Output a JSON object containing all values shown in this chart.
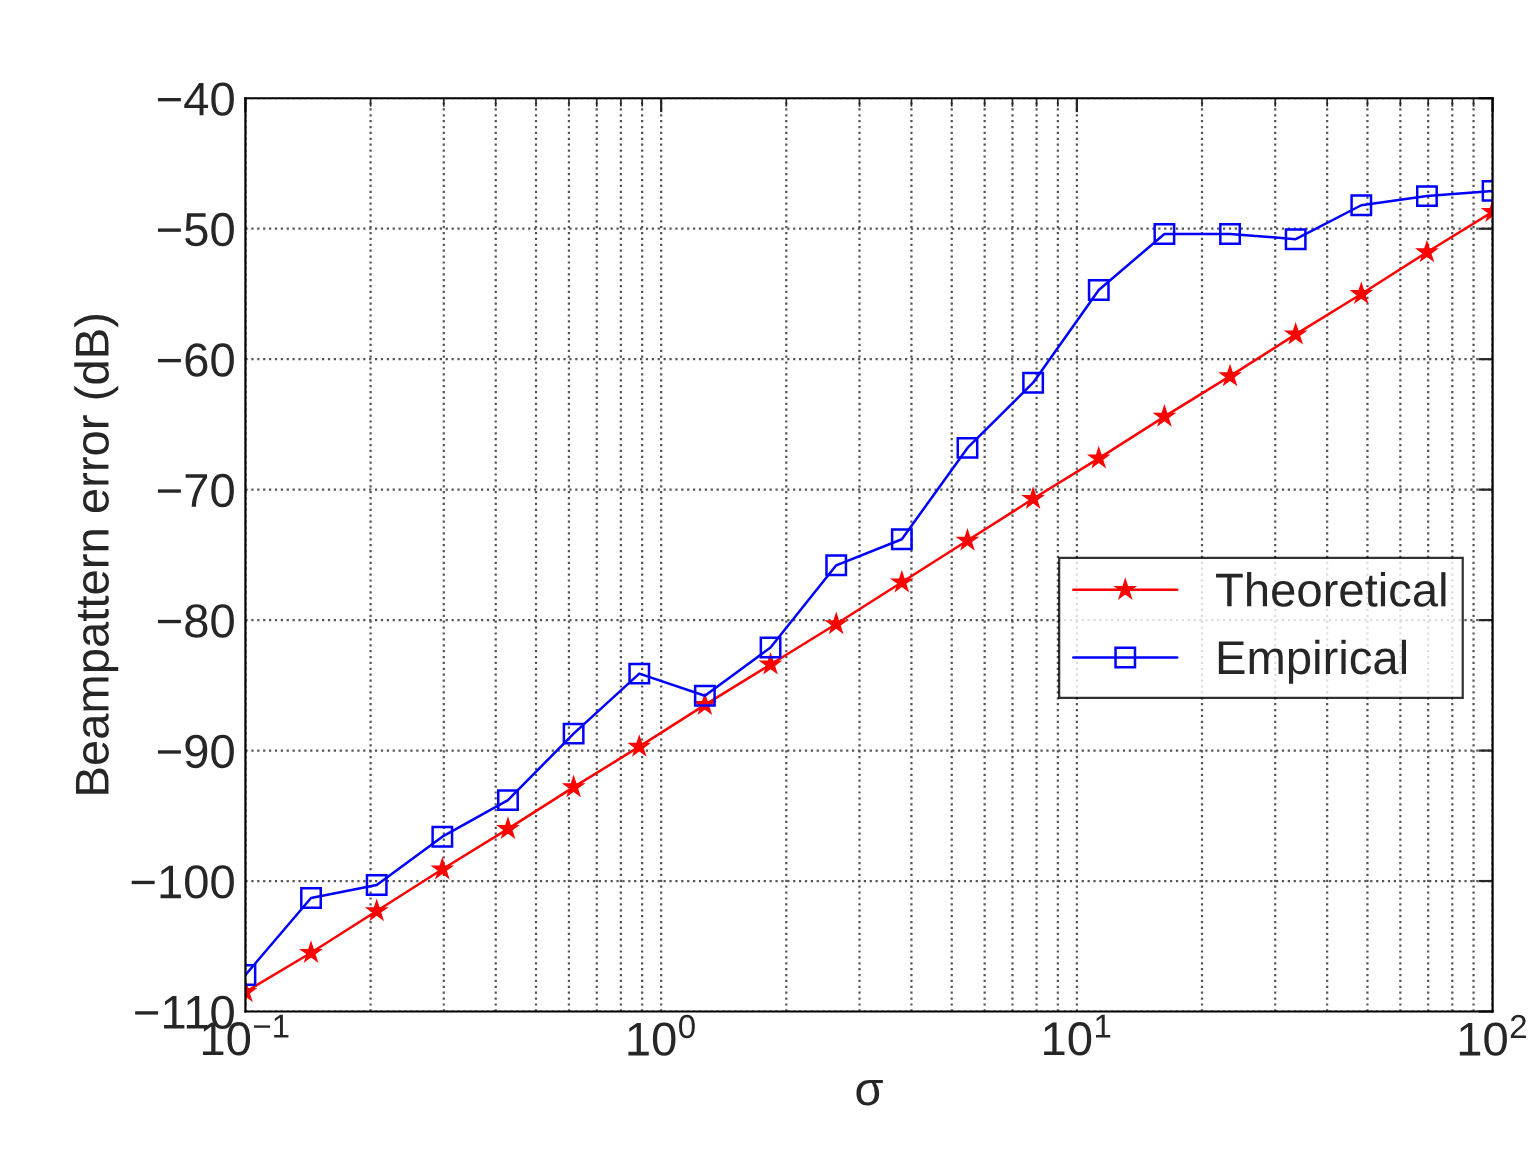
{
  "chart_data": {
    "type": "line",
    "xlabel": "σ",
    "ylabel": "Beampattern error (dB)",
    "x": [
      0.1,
      0.1438,
      0.2069,
      0.2976,
      0.4281,
      0.6158,
      0.8859,
      1.274,
      1.833,
      2.637,
      3.793,
      5.456,
      7.848,
      11.29,
      16.24,
      23.36,
      33.6,
      48.33,
      69.52,
      100
    ],
    "series": [
      {
        "name": "Theoretical",
        "color": "#ff0000",
        "marker": "star",
        "values": [
          -108.5,
          -105.5,
          -102.3,
          -99.1,
          -96.0,
          -92.8,
          -89.7,
          -86.5,
          -83.4,
          -80.3,
          -77.1,
          -73.9,
          -70.7,
          -67.6,
          -64.4,
          -61.3,
          -58.1,
          -55.0,
          -51.8,
          -48.7
        ]
      },
      {
        "name": "Empirical",
        "color": "#0000ff",
        "marker": "square",
        "values": [
          -107.2,
          -101.3,
          -100.3,
          -96.6,
          -93.8,
          -88.7,
          -84.1,
          -85.8,
          -82.1,
          -75.8,
          -73.8,
          -66.8,
          -61.8,
          -54.7,
          -50.4,
          -50.4,
          -50.8,
          -48.2,
          -47.5,
          -47.1
        ]
      }
    ],
    "log": "x",
    "xlim": [
      0.1,
      100
    ],
    "xticks": [
      {
        "value": 0.1,
        "label": "10$^{−1}$"
      },
      {
        "value": 1,
        "label": "10$^{0}$"
      },
      {
        "value": 10,
        "label": "10$^{1}$"
      },
      {
        "value": 100,
        "label": "10$^{2}$"
      }
    ],
    "ylim": [
      -110,
      -40
    ],
    "yticks": [
      -110,
      -100,
      -90,
      -80,
      -70,
      -60,
      -50,
      -40
    ],
    "grid": true,
    "legend": "right",
    "line_style": "solid"
  }
}
